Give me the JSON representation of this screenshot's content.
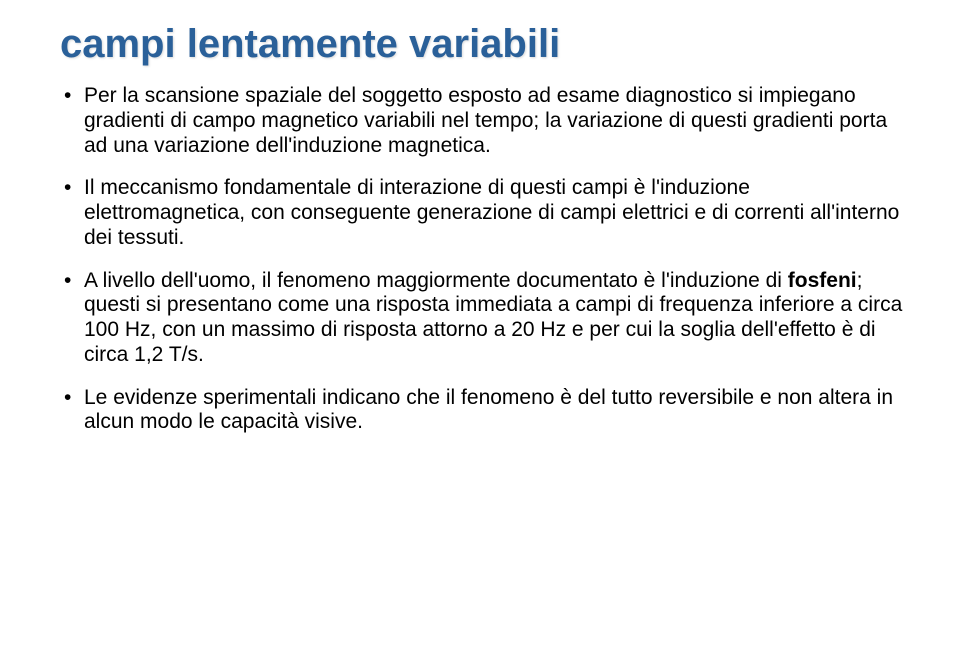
{
  "title": "campi lentamente variabili",
  "bullets": [
    {
      "segments": [
        {
          "text": "Per la scansione spaziale del soggetto esposto ad esame diagnostico si impiegano gradienti di campo magnetico variabili nel tempo; la variazione di questi gradienti porta ad una variazione dell'induzione magnetica.",
          "bold": false
        }
      ]
    },
    {
      "segments": [
        {
          "text": "Il meccanismo fondamentale di interazione di questi campi è l'induzione elettromagnetica, con conseguente generazione di campi elettrici e di correnti all'interno dei tessuti.",
          "bold": false
        }
      ]
    },
    {
      "segments": [
        {
          "text": "A livello dell'uomo, il fenomeno maggiormente documentato è l'induzione di ",
          "bold": false
        },
        {
          "text": "fosfeni",
          "bold": true
        },
        {
          "text": "; questi si presentano come una risposta immediata a campi di frequenza inferiore a circa 100 Hz, con un massimo di risposta attorno a 20 Hz e per cui la soglia dell'effetto è di circa 1,2 T/s.",
          "bold": false
        }
      ]
    },
    {
      "segments": [
        {
          "text": "Le evidenze sperimentali indicano che il fenomeno è del tutto reversibile e non altera in alcun modo le capacità visive.",
          "bold": false
        }
      ]
    }
  ],
  "colors": {
    "title": "#2a6099",
    "body": "#000000",
    "background": "#ffffff"
  },
  "typography": {
    "title_fontsize": 40,
    "title_weight": "bold",
    "body_fontsize": 21,
    "font_family": "Arial"
  }
}
